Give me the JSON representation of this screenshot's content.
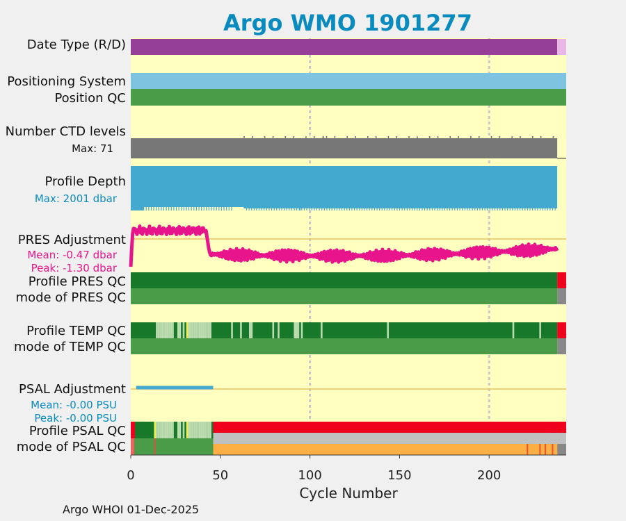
{
  "title": "Argo WMO 1901277",
  "footer": "Argo WHOI 01-Dec-2025",
  "colors": {
    "background_panel": "#ffffc0",
    "title": "#0a8bbf",
    "date_type": "#963f99",
    "date_type_last": "#e8b7e6",
    "positioning": "#7ec4e0",
    "position_qc": "#4a9c48",
    "ctd_levels": "#777777",
    "profile_depth": "#43a9cf",
    "pres_adjust": "#e8148b",
    "zero_line": "#f0c060",
    "qc_dark_green": "#17782a",
    "qc_green": "#4a9c48",
    "qc_light_green": "#bcdcb0",
    "qc_yellow": "#f0f050",
    "qc_red": "#f0001c",
    "qc_grey": "#888888",
    "qc_light_grey": "#c0c0c0",
    "qc_orange": "#fcb044",
    "psal_adjust": "#43a9cf",
    "label_blue": "#0a8bbf",
    "label_magenta": "#e8148b"
  },
  "rows": {
    "date_type": "Date Type (R/D)",
    "positioning": "Positioning System",
    "position_qc": "Position QC",
    "ctd_levels": "Number CTD levels",
    "ctd_max": "Max: 71",
    "profile_depth": "Profile Depth",
    "depth_max": "Max: 2001 dbar",
    "pres_adjustment": "PRES Adjustment",
    "pres_mean": "Mean: -0.47 dbar",
    "pres_peak": "Peak: -1.30 dbar",
    "profile_pres_qc": "Profile PRES QC",
    "mode_pres_qc": "mode of PRES QC",
    "profile_temp_qc": "Profile TEMP QC",
    "mode_temp_qc": "mode of TEMP QC",
    "psal_adjustment": "PSAL Adjustment",
    "psal_mean": "Mean: -0.00 PSU",
    "psal_peak": "Peak: -0.00 PSU",
    "profile_psal_qc": "Profile PSAL QC",
    "mode_psal_qc": "mode of PSAL QC"
  },
  "chart_data": {
    "type": "bar",
    "title": "Argo WMO 1901277",
    "xlabel": "Cycle Number",
    "ylabel": "",
    "xlim": [
      0,
      243
    ],
    "xticks": [
      0,
      50,
      100,
      150,
      200
    ],
    "grid_x": [
      100,
      200
    ],
    "last_cycle": 238,
    "ctd_levels_max": 71,
    "profile_depth_max_dbar": 2001,
    "pres_adjustment_mean_dbar": -0.47,
    "pres_adjustment_peak_dbar": -1.3,
    "psal_adjustment_mean_psu": -0.0,
    "psal_adjustment_peak_psu": -0.0,
    "psal_adjustment_range": [
      3,
      46
    ],
    "pres_adjustment_segments": [
      {
        "from": 0,
        "to": 42,
        "level": "high"
      },
      {
        "from": 42,
        "to": 238,
        "level": "low"
      }
    ],
    "temp_qc_light_cycles": [
      14,
      15,
      16,
      17,
      18,
      19,
      20,
      21,
      22,
      23,
      26,
      27,
      29,
      31,
      32,
      33,
      34,
      35,
      36,
      37,
      38,
      39,
      40,
      41,
      42,
      43,
      44,
      56,
      61,
      66,
      67,
      79,
      82,
      91,
      92,
      93,
      95,
      106,
      143,
      213,
      228
    ],
    "temp_qc_yellow_cycles": [
      31
    ],
    "psal_qc_light_cycles": [
      14,
      15,
      16,
      17,
      18,
      19,
      20,
      21,
      22,
      23,
      26,
      27,
      29,
      31,
      32,
      33,
      34,
      35,
      36,
      37,
      38,
      39,
      40,
      41,
      42,
      43,
      44
    ],
    "psal_qc_yellow_cycles": [
      13,
      31
    ],
    "psal_mode_orange_red_cycles": [
      221,
      228,
      231,
      235
    ]
  }
}
